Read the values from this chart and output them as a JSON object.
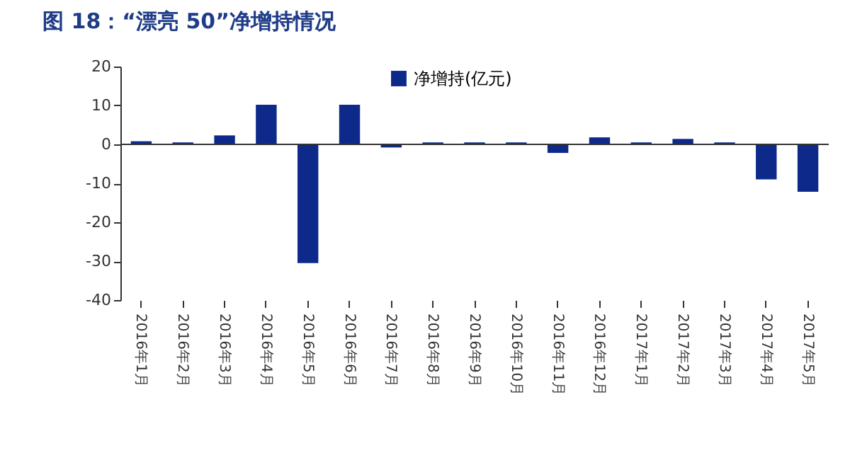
{
  "chart_data": {
    "type": "bar",
    "title": "图 18：“漂亮 50”净增持情况",
    "categories": [
      "2016年1月",
      "2016年2月",
      "2016年3月",
      "2016年4月",
      "2016年5月",
      "2016年6月",
      "2016年7月",
      "2016年8月",
      "2016年9月",
      "2016年10月",
      "2016年11月",
      "2016年12月",
      "2017年1月",
      "2017年2月",
      "2017年3月",
      "2017年4月",
      "2017年5月"
    ],
    "series": [
      {
        "name": "净增持(亿元)",
        "color": "#0d2a8a",
        "values": [
          0.8,
          0.5,
          2.3,
          10.2,
          -30.5,
          10.2,
          -0.8,
          0.5,
          0.5,
          0.5,
          -2.2,
          1.8,
          0.5,
          1.4,
          0.5,
          -9,
          -12.2
        ]
      }
    ],
    "ylim": [
      -40,
      20
    ],
    "yticks": [
      -40,
      -30,
      -20,
      -10,
      0,
      10,
      20
    ],
    "legend": "top"
  }
}
